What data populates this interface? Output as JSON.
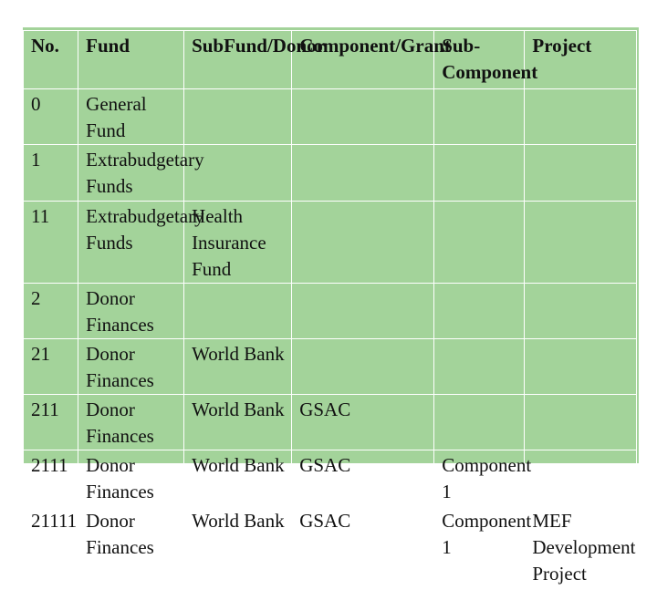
{
  "colors": {
    "panel_background": "#a3d39a",
    "grid_lines": "#ffffff",
    "text": "#111111"
  },
  "table": {
    "headers": [
      "No.",
      "Fund",
      "SubFund/Donor",
      "Component/Grant",
      "Sub-\nComponent",
      "Project"
    ],
    "rows": [
      [
        "0",
        "General Fund",
        "",
        "",
        "",
        ""
      ],
      [
        "1",
        "Extrabudgetary\nFunds",
        "",
        "",
        "",
        ""
      ],
      [
        "11",
        "Extrabudgetary\nFunds",
        "Health Insurance\nFund",
        "",
        "",
        ""
      ],
      [
        "2",
        "Donor Finances",
        "",
        "",
        "",
        ""
      ],
      [
        "21",
        "Donor Finances",
        "World Bank",
        "",
        "",
        ""
      ],
      [
        "211",
        "Donor Finances",
        "World Bank",
        "GSAC",
        "",
        ""
      ],
      [
        "2111",
        "Donor Finances",
        "World Bank",
        "GSAC",
        "Component 1",
        ""
      ],
      [
        "21111",
        "Donor Finances",
        "World Bank",
        "GSAC",
        "Component 1",
        "MEF\nDevelopment\nProject"
      ]
    ]
  }
}
